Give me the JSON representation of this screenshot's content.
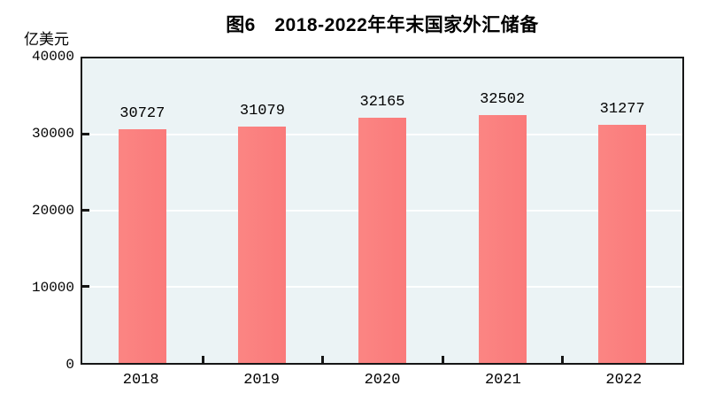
{
  "figure": {
    "title": "图6　2018-2022年年末国家外汇储备",
    "unit_label": "亿美元"
  },
  "chart_data": {
    "type": "bar",
    "title": "图6　2018-2022年年末国家外汇储备",
    "unit_label": "亿美元",
    "categories": [
      "2018",
      "2019",
      "2020",
      "2021",
      "2022"
    ],
    "values": [
      30727,
      31079,
      32165,
      32502,
      31277
    ],
    "xlabel": "",
    "ylabel": "亿美元",
    "ylim": [
      0,
      40000
    ],
    "yticks": [
      0,
      10000,
      20000,
      30000,
      40000
    ],
    "grid": "faint white horizontal gridlines at each y tick",
    "legend": "none",
    "data_labels": "value shown above each bar",
    "colors": {
      "bar": "#FA7A7A",
      "plot_background": "#EBF3F5",
      "axis_frame": "#161616",
      "gridline": "#FDFEFE",
      "text": "#000000",
      "page_background": "#FFFFFF"
    }
  }
}
